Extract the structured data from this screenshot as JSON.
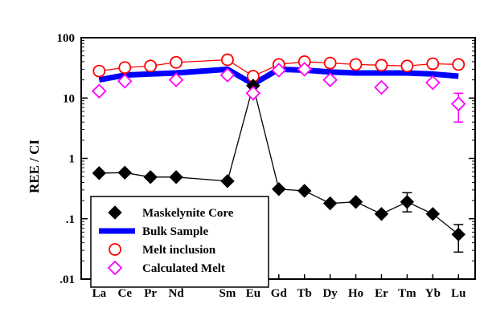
{
  "chart_data": {
    "type": "line",
    "ylabel": "REE / CI",
    "xlabel": "",
    "y_scale": "log",
    "ylim": [
      0.01,
      100
    ],
    "y_tick_values": [
      0.01,
      0.1,
      1,
      10,
      100
    ],
    "y_tick_labels": [
      ".01",
      ".1",
      "1",
      "10",
      "100"
    ],
    "categories": [
      "La",
      "Ce",
      "Pr",
      "Nd",
      "Sm",
      "Eu",
      "Gd",
      "Tb",
      "Dy",
      "Ho",
      "Er",
      "Tm",
      "Yb",
      "Lu"
    ],
    "x": [
      1,
      2,
      3,
      4,
      6,
      7,
      8,
      9,
      10,
      11,
      12,
      13,
      14,
      15
    ],
    "legend_position": "bottom-left",
    "series": [
      {
        "name": "Maskelynite Core",
        "marker": "diamond-filled",
        "color": "#000000",
        "x": [
          1,
          2,
          3,
          4,
          6,
          7,
          8,
          9,
          10,
          11,
          12,
          13,
          14,
          15
        ],
        "values": [
          0.57,
          0.58,
          0.49,
          0.49,
          0.42,
          16,
          0.31,
          0.29,
          0.18,
          0.19,
          0.12,
          0.19,
          0.12,
          0.055
        ],
        "errors": [
          {
            "x": 13,
            "low": 0.13,
            "high": 0.27
          },
          {
            "x": 15,
            "low": 0.028,
            "high": 0.08
          }
        ]
      },
      {
        "name": "Bulk Sample",
        "marker": "none",
        "color": "#0000ff",
        "x": [
          1,
          2,
          3,
          4,
          6,
          7,
          8,
          9,
          10,
          11,
          12,
          13,
          14,
          15
        ],
        "values": [
          20,
          24,
          25,
          26,
          30,
          17,
          30,
          29,
          27,
          26,
          26,
          26,
          25,
          23
        ]
      },
      {
        "name": "Melt inclusion",
        "marker": "circle-open",
        "color": "#ff0000",
        "x": [
          1,
          2,
          3,
          4,
          6,
          7,
          8,
          9,
          10,
          11,
          12,
          13,
          14,
          15
        ],
        "values": [
          28,
          32,
          34,
          39,
          43,
          23,
          36,
          40,
          38,
          36,
          35,
          34,
          37,
          36
        ]
      },
      {
        "name": "Calculated Melt",
        "marker": "diamond-open",
        "color": "#ff00ff",
        "x": [
          1,
          2,
          4,
          6,
          7,
          8,
          9,
          10,
          12,
          14,
          15
        ],
        "values": [
          13,
          19,
          20,
          24,
          12,
          29,
          30,
          20,
          15,
          18,
          8
        ],
        "errors": [
          {
            "x": 15,
            "low": 4,
            "high": 12
          }
        ]
      }
    ]
  }
}
